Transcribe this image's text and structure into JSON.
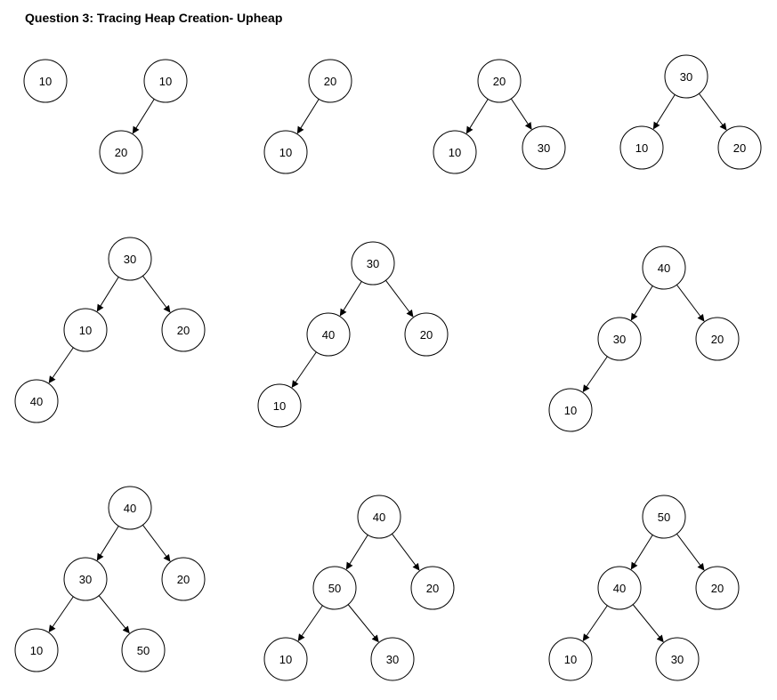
{
  "title": "Question 3: Tracing Heap Creation- Upheap",
  "trees": [
    {
      "nodes": [
        "10"
      ],
      "edges": []
    },
    {
      "nodes": [
        "10",
        "20"
      ],
      "edges": [
        [
          0,
          1
        ]
      ]
    },
    {
      "nodes": [
        "20",
        "10"
      ],
      "edges": [
        [
          0,
          1
        ]
      ]
    },
    {
      "nodes": [
        "20",
        "10",
        "30"
      ],
      "edges": [
        [
          0,
          1
        ],
        [
          0,
          2
        ]
      ]
    },
    {
      "nodes": [
        "30",
        "10",
        "20"
      ],
      "edges": [
        [
          0,
          1
        ],
        [
          0,
          2
        ]
      ]
    },
    {
      "nodes": [
        "30",
        "10",
        "20",
        "40"
      ],
      "edges": [
        [
          0,
          1
        ],
        [
          0,
          2
        ],
        [
          1,
          3
        ]
      ]
    },
    {
      "nodes": [
        "30",
        "40",
        "20",
        "10"
      ],
      "edges": [
        [
          0,
          1
        ],
        [
          0,
          2
        ],
        [
          1,
          3
        ]
      ]
    },
    {
      "nodes": [
        "40",
        "30",
        "20",
        "10"
      ],
      "edges": [
        [
          0,
          1
        ],
        [
          0,
          2
        ],
        [
          1,
          3
        ]
      ]
    },
    {
      "nodes": [
        "40",
        "30",
        "20",
        "10",
        "50"
      ],
      "edges": [
        [
          0,
          1
        ],
        [
          0,
          2
        ],
        [
          1,
          3
        ],
        [
          1,
          4
        ]
      ]
    },
    {
      "nodes": [
        "40",
        "50",
        "20",
        "10",
        "30"
      ],
      "edges": [
        [
          0,
          1
        ],
        [
          0,
          2
        ],
        [
          1,
          3
        ],
        [
          1,
          4
        ]
      ]
    },
    {
      "nodes": [
        "50",
        "40",
        "20",
        "10",
        "30"
      ],
      "edges": [
        [
          0,
          1
        ],
        [
          0,
          2
        ],
        [
          1,
          3
        ],
        [
          1,
          4
        ]
      ]
    }
  ]
}
